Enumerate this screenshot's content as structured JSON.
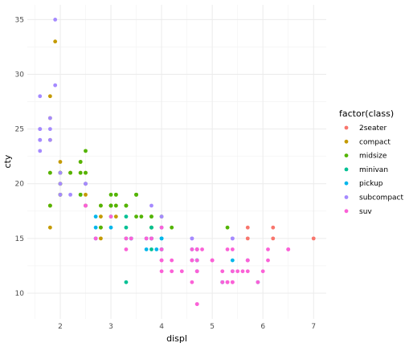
{
  "chart_data": {
    "type": "scatter",
    "xlabel": "displ",
    "ylabel": "cty",
    "xlim": [
      1.35,
      7.25
    ],
    "ylim": [
      7.65,
      36.35
    ],
    "x_ticks": [
      2,
      3,
      4,
      5,
      6,
      7
    ],
    "y_ticks": [
      10,
      15,
      20,
      25,
      30,
      35
    ],
    "grid": true,
    "legend_position": "right",
    "legend_title": "factor(class)",
    "series": [
      {
        "name": "2seater",
        "color": "#F8766D",
        "points": [
          [
            5.7,
            16
          ],
          [
            5.7,
            15
          ],
          [
            6.2,
            16
          ],
          [
            6.2,
            15
          ],
          [
            7.0,
            15
          ]
        ]
      },
      {
        "name": "compact",
        "color": "#C49A00",
        "points": [
          [
            1.8,
            18
          ],
          [
            1.8,
            21
          ],
          [
            2.0,
            20
          ],
          [
            2.0,
            21
          ],
          [
            2.8,
            16
          ],
          [
            2.8,
            18
          ],
          [
            3.1,
            18
          ],
          [
            1.8,
            18
          ],
          [
            1.8,
            16
          ],
          [
            2.0,
            20
          ],
          [
            2.0,
            19
          ],
          [
            2.8,
            15
          ],
          [
            3.1,
            17
          ],
          [
            2.2,
            21
          ],
          [
            2.2,
            21
          ],
          [
            2.4,
            21
          ],
          [
            2.4,
            22
          ],
          [
            3.0,
            18
          ],
          [
            3.3,
            18
          ],
          [
            1.8,
            24
          ],
          [
            1.8,
            26
          ],
          [
            1.8,
            28
          ],
          [
            1.9,
            33
          ],
          [
            2.0,
            21
          ],
          [
            2.0,
            22
          ],
          [
            2.5,
            21
          ],
          [
            2.5,
            20
          ],
          [
            2.0,
            19
          ],
          [
            2.5,
            19
          ],
          [
            2.8,
            17
          ]
        ]
      },
      {
        "name": "midsize",
        "color": "#53B400",
        "points": [
          [
            1.8,
            18
          ],
          [
            1.8,
            21
          ],
          [
            2.0,
            21
          ],
          [
            2.0,
            20
          ],
          [
            2.8,
            16
          ],
          [
            2.8,
            18
          ],
          [
            3.1,
            19
          ],
          [
            2.4,
            19
          ],
          [
            2.5,
            18
          ],
          [
            3.3,
            18
          ],
          [
            3.5,
            19
          ],
          [
            3.5,
            17
          ],
          [
            3.6,
            17
          ],
          [
            3.8,
            16
          ],
          [
            3.8,
            17
          ],
          [
            4.0,
            17
          ],
          [
            3.0,
            19
          ],
          [
            2.4,
            21
          ],
          [
            2.4,
            22
          ],
          [
            3.1,
            18
          ],
          [
            3.1,
            19
          ],
          [
            3.8,
            17
          ],
          [
            3.5,
            19
          ],
          [
            3.3,
            18
          ],
          [
            2.2,
            21
          ],
          [
            2.5,
            23
          ],
          [
            3.0,
            18
          ],
          [
            3.5,
            19
          ],
          [
            4.2,
            16
          ],
          [
            2.5,
            18
          ],
          [
            2.5,
            21
          ],
          [
            3.0,
            18
          ],
          [
            3.8,
            16
          ],
          [
            5.3,
            16
          ],
          [
            2.0,
            19
          ],
          [
            2.0,
            21
          ],
          [
            3.0,
            18
          ],
          [
            2.4,
            19
          ],
          [
            2.5,
            20
          ]
        ]
      },
      {
        "name": "minivan",
        "color": "#00C094",
        "points": [
          [
            3.3,
            11
          ],
          [
            3.8,
            15
          ],
          [
            3.8,
            15
          ],
          [
            3.8,
            14
          ],
          [
            4.0,
            14
          ],
          [
            3.8,
            16
          ],
          [
            3.3,
            17
          ],
          [
            3.3,
            16
          ],
          [
            3.0,
            17
          ],
          [
            3.3,
            15
          ],
          [
            3.8,
            15
          ]
        ]
      },
      {
        "name": "pickup",
        "color": "#00B6EB",
        "points": [
          [
            2.7,
            15
          ],
          [
            2.7,
            16
          ],
          [
            2.7,
            17
          ],
          [
            3.0,
            16
          ],
          [
            3.4,
            15
          ],
          [
            3.4,
            15
          ],
          [
            4.0,
            14
          ],
          [
            4.0,
            15
          ],
          [
            4.7,
            14
          ],
          [
            4.7,
            13
          ],
          [
            5.7,
            13
          ],
          [
            3.9,
            14
          ],
          [
            4.7,
            12
          ],
          [
            4.7,
            13
          ],
          [
            5.2,
            11
          ],
          [
            5.2,
            11
          ],
          [
            5.9,
            11
          ],
          [
            4.6,
            14
          ],
          [
            5.4,
            12
          ],
          [
            5.4,
            13
          ],
          [
            3.7,
            15
          ],
          [
            3.7,
            14
          ],
          [
            4.7,
            13
          ],
          [
            4.7,
            14
          ],
          [
            4.0,
            16
          ],
          [
            4.6,
            13
          ],
          [
            4.0,
            15
          ]
        ]
      },
      {
        "name": "subcompact",
        "color": "#A58AFF",
        "points": [
          [
            1.6,
            28
          ],
          [
            1.6,
            24
          ],
          [
            1.6,
            25
          ],
          [
            1.6,
            23
          ],
          [
            1.6,
            24
          ],
          [
            1.8,
            26
          ],
          [
            1.8,
            25
          ],
          [
            1.8,
            24
          ],
          [
            2.0,
            21
          ],
          [
            3.8,
            18
          ],
          [
            3.8,
            15
          ],
          [
            4.0,
            17
          ],
          [
            4.6,
            15
          ],
          [
            4.6,
            15
          ],
          [
            5.4,
            15
          ],
          [
            5.4,
            15
          ],
          [
            1.9,
            35
          ],
          [
            1.9,
            29
          ],
          [
            2.0,
            20
          ],
          [
            2.0,
            19
          ],
          [
            2.2,
            19
          ],
          [
            2.5,
            20
          ],
          [
            2.5,
            20
          ],
          [
            1.6,
            25
          ]
        ]
      },
      {
        "name": "suv",
        "color": "#FB61D7",
        "points": [
          [
            5.3,
            14
          ],
          [
            5.3,
            11
          ],
          [
            5.3,
            11
          ],
          [
            5.7,
            13
          ],
          [
            6.0,
            12
          ],
          [
            5.7,
            12
          ],
          [
            5.7,
            13
          ],
          [
            6.5,
            14
          ],
          [
            4.7,
            9
          ],
          [
            4.7,
            14
          ],
          [
            4.7,
            13
          ],
          [
            5.2,
            11
          ],
          [
            5.7,
            13
          ],
          [
            5.9,
            11
          ],
          [
            4.7,
            9
          ],
          [
            4.7,
            14
          ],
          [
            4.7,
            12
          ],
          [
            5.2,
            12
          ],
          [
            3.8,
            15
          ],
          [
            4.0,
            14
          ],
          [
            4.7,
            14
          ],
          [
            4.6,
            13
          ],
          [
            5.0,
            13
          ],
          [
            5.4,
            11
          ],
          [
            6.1,
            14
          ],
          [
            2.5,
            18
          ],
          [
            2.5,
            18
          ],
          [
            3.3,
            15
          ],
          [
            3.3,
            14
          ],
          [
            4.0,
            13
          ],
          [
            4.0,
            12
          ],
          [
            4.2,
            13
          ],
          [
            4.4,
            12
          ],
          [
            4.6,
            11
          ],
          [
            5.0,
            13
          ],
          [
            5.4,
            11
          ],
          [
            5.4,
            12
          ],
          [
            5.6,
            12
          ],
          [
            6.1,
            13
          ],
          [
            3.0,
            17
          ],
          [
            3.7,
            15
          ],
          [
            4.0,
            13
          ],
          [
            4.6,
            14
          ],
          [
            4.7,
            12
          ],
          [
            2.7,
            15
          ],
          [
            3.4,
            15
          ],
          [
            4.0,
            16
          ],
          [
            4.8,
            14
          ],
          [
            4.2,
            12
          ],
          [
            4.6,
            13
          ],
          [
            5.0,
            13
          ],
          [
            5.4,
            14
          ],
          [
            5.5,
            12
          ],
          [
            6.5,
            14
          ]
        ]
      }
    ]
  }
}
